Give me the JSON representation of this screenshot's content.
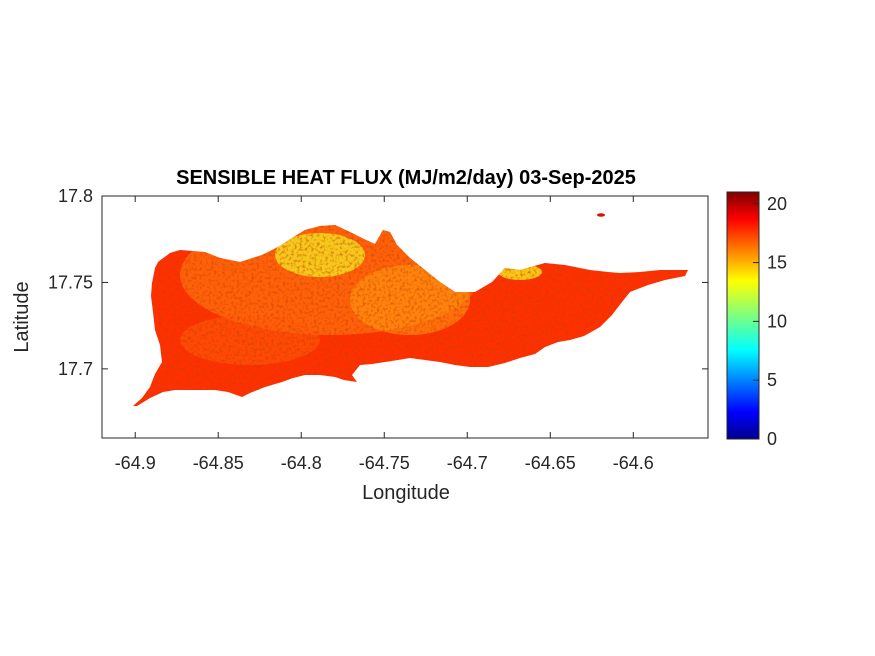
{
  "title": "SENSIBLE HEAT FLUX (MJ/m2/day) 03-Sep-2025",
  "xlabel": "Longitude",
  "ylabel": "Latitude",
  "x_ticks": [
    "-64.9",
    "-64.85",
    "-64.8",
    "-64.75",
    "-64.7",
    "-64.65",
    "-64.6"
  ],
  "y_ticks": [
    "17.8",
    "17.75",
    "17.7"
  ],
  "colorbar": {
    "ticks": [
      "20",
      "15",
      "10",
      "5",
      "0"
    ],
    "range": [
      0,
      21
    ],
    "colormap": "jet"
  },
  "map": {
    "xlim": [
      -64.92,
      -64.555
    ],
    "ylim": [
      17.66,
      17.8
    ],
    "land_mean_value": 18.5,
    "warm_patch_values": [
      15,
      16
    ]
  }
}
